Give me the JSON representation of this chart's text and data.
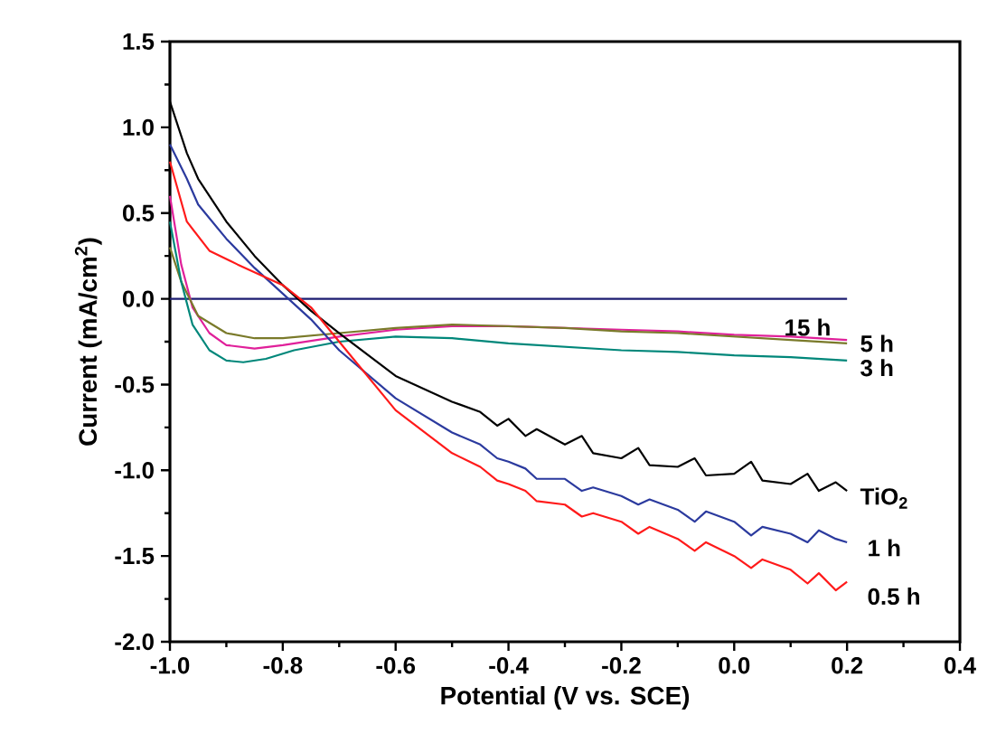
{
  "chart_data": {
    "type": "line",
    "xlabel": "Potential (V vs. SCE)",
    "ylabel": "Current (mA/cm$^{2}$)",
    "xlim": [
      -1.0,
      0.4
    ],
    "ylim": [
      -2.0,
      1.5
    ],
    "xticks": [
      {
        "value": -1.0,
        "label": "-1.0"
      },
      -0.8,
      -0.6,
      -0.4,
      -0.2,
      {
        "value": 0.0,
        "label": "0.0"
      },
      0.2,
      0.4
    ],
    "yticks": [
      {
        "value": -2.0,
        "label": "-2.0"
      },
      -1.5,
      {
        "value": -1.0,
        "label": "-1.0"
      },
      -0.5,
      {
        "value": 0.0,
        "label": "0.0"
      },
      0.5,
      {
        "value": 1.0,
        "label": "1.0"
      },
      1.5
    ],
    "marker": "none",
    "line_style": "solid",
    "ref_lines": [
      {
        "axis": "y",
        "value": 0.0,
        "color": "#1c1c70"
      }
    ],
    "series": [
      {
        "name": "15 h",
        "color": "#e0209a",
        "x": [
          -1.0,
          -0.98,
          -0.96,
          -0.93,
          -0.9,
          -0.85,
          -0.8,
          -0.7,
          -0.6,
          -0.5,
          -0.4,
          -0.3,
          -0.2,
          -0.1,
          0.0,
          0.1,
          0.2
        ],
        "values": [
          0.6,
          0.2,
          -0.05,
          -0.2,
          -0.27,
          -0.29,
          -0.27,
          -0.22,
          -0.18,
          -0.16,
          -0.16,
          -0.17,
          -0.18,
          -0.19,
          -0.21,
          -0.22,
          -0.24
        ]
      },
      {
        "name": "5 h",
        "color": "#7a7a2a",
        "x": [
          -1.0,
          -0.98,
          -0.95,
          -0.9,
          -0.85,
          -0.8,
          -0.7,
          -0.6,
          -0.5,
          -0.4,
          -0.3,
          -0.2,
          -0.1,
          0.0,
          0.1,
          0.2
        ],
        "values": [
          0.3,
          0.1,
          -0.1,
          -0.2,
          -0.23,
          -0.23,
          -0.2,
          -0.17,
          -0.15,
          -0.16,
          -0.17,
          -0.19,
          -0.2,
          -0.22,
          -0.24,
          -0.26
        ]
      },
      {
        "name": "3 h",
        "color": "#00877a",
        "x": [
          -1.0,
          -0.98,
          -0.96,
          -0.93,
          -0.9,
          -0.87,
          -0.83,
          -0.78,
          -0.7,
          -0.6,
          -0.5,
          -0.4,
          -0.3,
          -0.2,
          -0.1,
          0.0,
          0.1,
          0.2
        ],
        "values": [
          0.45,
          0.1,
          -0.15,
          -0.3,
          -0.36,
          -0.37,
          -0.35,
          -0.3,
          -0.25,
          -0.22,
          -0.23,
          -0.26,
          -0.28,
          -0.3,
          -0.31,
          -0.33,
          -0.34,
          -0.36
        ]
      },
      {
        "name": "TiO$_{2}$",
        "color": "#000000",
        "x": [
          -1.0,
          -0.97,
          -0.95,
          -0.9,
          -0.85,
          -0.8,
          -0.75,
          -0.7,
          -0.6,
          -0.5,
          -0.45,
          -0.42,
          -0.4,
          -0.37,
          -0.35,
          -0.3,
          -0.27,
          -0.25,
          -0.2,
          -0.17,
          -0.15,
          -0.1,
          -0.07,
          -0.05,
          0.0,
          0.03,
          0.05,
          0.1,
          0.13,
          0.15,
          0.18,
          0.2
        ],
        "values": [
          1.15,
          0.85,
          0.7,
          0.45,
          0.25,
          0.08,
          -0.07,
          -0.2,
          -0.45,
          -0.6,
          -0.66,
          -0.74,
          -0.7,
          -0.8,
          -0.76,
          -0.85,
          -0.8,
          -0.9,
          -0.93,
          -0.87,
          -0.97,
          -0.98,
          -0.93,
          -1.03,
          -1.02,
          -0.95,
          -1.06,
          -1.08,
          -1.02,
          -1.12,
          -1.07,
          -1.12
        ]
      },
      {
        "name": "1 h",
        "color": "#2b3a9e",
        "x": [
          -1.0,
          -0.97,
          -0.95,
          -0.9,
          -0.85,
          -0.8,
          -0.75,
          -0.7,
          -0.6,
          -0.5,
          -0.45,
          -0.42,
          -0.4,
          -0.37,
          -0.35,
          -0.3,
          -0.27,
          -0.25,
          -0.2,
          -0.17,
          -0.15,
          -0.1,
          -0.07,
          -0.05,
          0.0,
          0.03,
          0.05,
          0.1,
          0.13,
          0.15,
          0.18,
          0.2
        ],
        "values": [
          0.9,
          0.7,
          0.55,
          0.35,
          0.18,
          0.03,
          -0.12,
          -0.3,
          -0.58,
          -0.78,
          -0.85,
          -0.93,
          -0.95,
          -0.99,
          -1.05,
          -1.05,
          -1.12,
          -1.1,
          -1.15,
          -1.2,
          -1.17,
          -1.23,
          -1.3,
          -1.24,
          -1.3,
          -1.38,
          -1.33,
          -1.37,
          -1.42,
          -1.35,
          -1.4,
          -1.42
        ]
      },
      {
        "name": "0.5 h",
        "color": "#ff1a1a",
        "x": [
          -1.0,
          -0.97,
          -0.93,
          -0.88,
          -0.8,
          -0.75,
          -0.7,
          -0.6,
          -0.5,
          -0.45,
          -0.42,
          -0.4,
          -0.37,
          -0.35,
          -0.3,
          -0.27,
          -0.25,
          -0.2,
          -0.17,
          -0.15,
          -0.1,
          -0.07,
          -0.05,
          0.0,
          0.03,
          0.05,
          0.1,
          0.13,
          0.15,
          0.18,
          0.2
        ],
        "values": [
          0.8,
          0.45,
          0.28,
          0.2,
          0.08,
          -0.05,
          -0.25,
          -0.65,
          -0.9,
          -0.98,
          -1.06,
          -1.08,
          -1.12,
          -1.18,
          -1.2,
          -1.27,
          -1.25,
          -1.3,
          -1.37,
          -1.33,
          -1.4,
          -1.47,
          -1.42,
          -1.5,
          -1.57,
          -1.52,
          -1.58,
          -1.66,
          -1.6,
          -1.7,
          -1.65
        ]
      }
    ]
  }
}
